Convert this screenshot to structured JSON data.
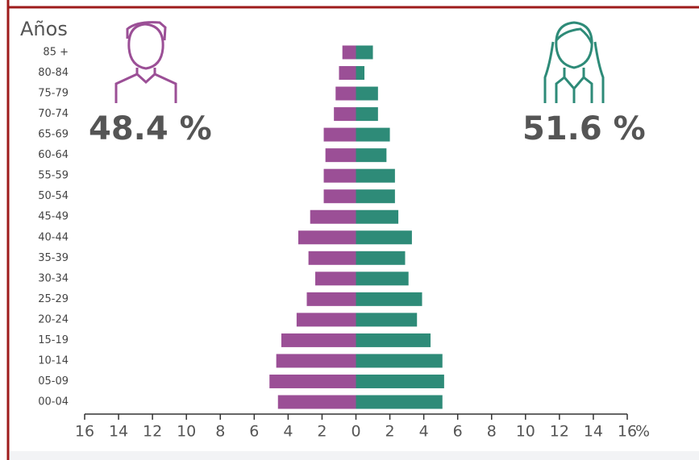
{
  "chart_data": {
    "type": "pyramid",
    "y_label": "Años",
    "x_label": "%",
    "annotations": [
      "48.4 %",
      "51.6 %"
    ],
    "categories": [
      "85 +",
      "80-84",
      "75-79",
      "70-74",
      "65-69",
      "60-64",
      "55-59",
      "50-54",
      "45-49",
      "40-44",
      "35-39",
      "30-34",
      "25-29",
      "20-24",
      "15-19",
      "10-14",
      "05-09",
      "00-04"
    ],
    "series": [
      {
        "color": "#9b4f96",
        "values": [
          -0.8,
          -1.0,
          -1.2,
          -1.3,
          -1.9,
          -1.8,
          -1.9,
          -1.9,
          -2.7,
          -3.4,
          -2.8,
          -2.4,
          -2.9,
          -3.5,
          -4.4,
          -4.7,
          -5.1,
          -4.6
        ]
      },
      {
        "color": "#2e8b78",
        "values": [
          1.0,
          0.5,
          1.3,
          1.3,
          2.0,
          1.8,
          2.3,
          2.3,
          2.5,
          3.3,
          2.9,
          3.1,
          3.9,
          3.6,
          4.4,
          5.1,
          5.2,
          5.1
        ]
      }
    ],
    "xlim": [
      -16,
      16
    ],
    "xticks": [
      {
        "value": -16,
        "label": "16"
      },
      {
        "value": -14,
        "label": "14"
      },
      {
        "value": -12,
        "label": "12"
      },
      {
        "value": -10,
        "label": "10"
      },
      {
        "value": -8,
        "label": "8"
      },
      {
        "value": -6,
        "label": "6"
      },
      {
        "value": -4,
        "label": "4"
      },
      {
        "value": -2,
        "label": "2"
      },
      0,
      2,
      4,
      6,
      8,
      10,
      12,
      14,
      16
    ]
  }
}
